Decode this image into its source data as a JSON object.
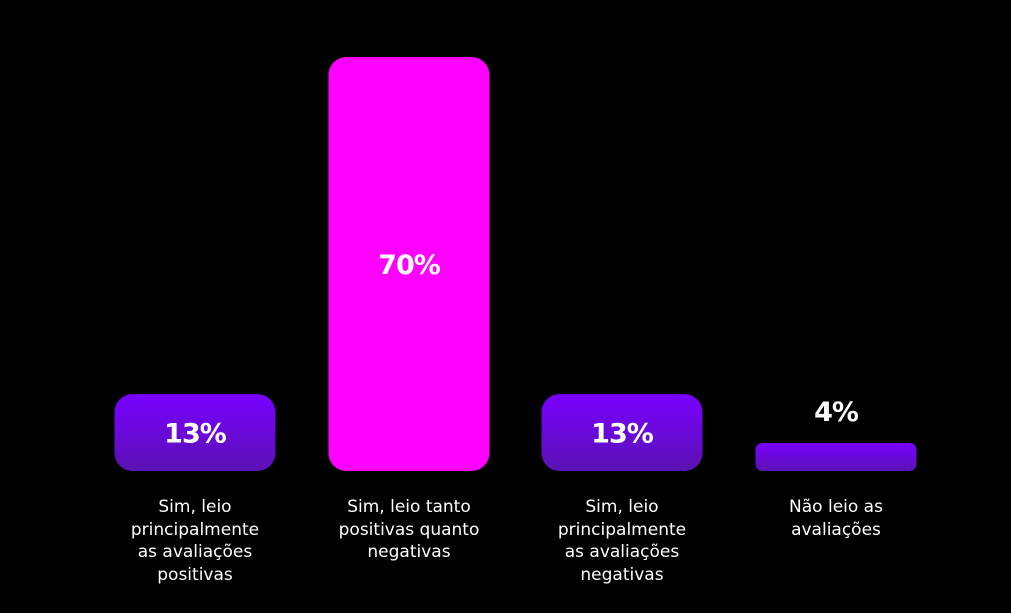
{
  "chart_data": {
    "type": "bar",
    "categories": [
      "Sim, leio\nprincipalmente\nas avaliações\npositivas",
      "Sim, leio tanto\npositivas quanto\nnegativas",
      "Sim, leio\nprincipalmente\nas avaliações\nnegativas",
      "Não leio as\navaliações"
    ],
    "values": [
      13,
      70,
      13,
      4
    ],
    "value_labels": [
      "13%",
      "70%",
      "13%",
      "4%"
    ],
    "title": "",
    "xlabel": "",
    "ylabel": "",
    "ylim": [
      0,
      70
    ],
    "grid": false,
    "legend": "none",
    "colors": {
      "highlight": "#ff00ff",
      "bar_top": "#7a00ff",
      "bar_bottom": "#5a12b4",
      "text": "#ffffff",
      "background": "#000000"
    },
    "highlight_index": 1
  }
}
